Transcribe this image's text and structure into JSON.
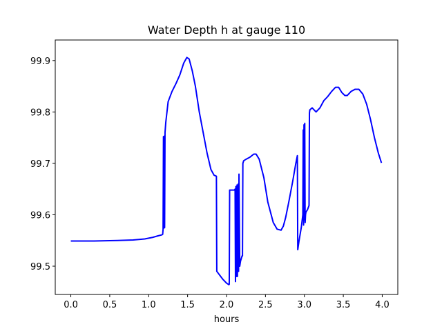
{
  "chart_data": {
    "type": "line",
    "title": "Water Depth h at gauge 110",
    "xlabel": "hours",
    "ylabel": "",
    "xlim": [
      -0.2,
      4.2
    ],
    "ylim": [
      99.445,
      99.94
    ],
    "xticks": [
      0.0,
      0.5,
      1.0,
      1.5,
      2.0,
      2.5,
      3.0,
      3.5,
      4.0
    ],
    "xtick_labels": [
      "0.0",
      "0.5",
      "1.0",
      "1.5",
      "2.0",
      "2.5",
      "3.0",
      "3.5",
      "4.0"
    ],
    "yticks": [
      99.5,
      99.6,
      99.7,
      99.8,
      99.9
    ],
    "ytick_labels": [
      "99.5",
      "99.6",
      "99.7",
      "99.8",
      "99.9"
    ],
    "grid": false,
    "line_color": "#0000ff",
    "series": [
      {
        "x": [
          0.0,
          0.3,
          0.6,
          0.8,
          0.95,
          1.05,
          1.12,
          1.17,
          1.18,
          1.185,
          1.19,
          1.195,
          1.2,
          1.205,
          1.21,
          1.22,
          1.25,
          1.3,
          1.35,
          1.4,
          1.45,
          1.49,
          1.52,
          1.56,
          1.6,
          1.65,
          1.7,
          1.75,
          1.8,
          1.84,
          1.87,
          1.875,
          1.9,
          1.95,
          2.0,
          2.03,
          2.035,
          2.04,
          2.08,
          2.1,
          2.11,
          2.115,
          2.12,
          2.13,
          2.135,
          2.14,
          2.15,
          2.155,
          2.16,
          2.17,
          2.175,
          2.18,
          2.2,
          2.205,
          2.21,
          2.22,
          2.25,
          2.3,
          2.35,
          2.38,
          2.42,
          2.48,
          2.53,
          2.6,
          2.65,
          2.7,
          2.73,
          2.76,
          2.8,
          2.85,
          2.89,
          2.91,
          2.915,
          2.93,
          2.96,
          2.98,
          2.985,
          2.99,
          2.995,
          3.0,
          3.005,
          3.01,
          3.015,
          3.02,
          3.04,
          3.06,
          3.065,
          3.07,
          3.1,
          3.15,
          3.2,
          3.25,
          3.3,
          3.35,
          3.4,
          3.44,
          3.48,
          3.52,
          3.55,
          3.6,
          3.65,
          3.7,
          3.75,
          3.8,
          3.85,
          3.9,
          3.95,
          3.99
        ],
        "y": [
          99.549,
          99.549,
          99.55,
          99.551,
          99.553,
          99.556,
          99.559,
          99.561,
          99.562,
          99.572,
          99.752,
          99.574,
          99.753,
          99.575,
          99.76,
          99.78,
          99.82,
          99.84,
          99.855,
          99.872,
          99.895,
          99.906,
          99.903,
          99.88,
          99.85,
          99.8,
          99.76,
          99.72,
          99.688,
          99.677,
          99.675,
          99.49,
          99.485,
          99.475,
          99.467,
          99.464,
          99.465,
          99.648,
          99.648,
          99.648,
          99.65,
          99.47,
          99.655,
          99.48,
          99.658,
          99.48,
          99.66,
          99.49,
          99.679,
          99.5,
          99.505,
          99.51,
          99.52,
          99.52,
          99.7,
          99.705,
          99.708,
          99.712,
          99.718,
          99.718,
          99.708,
          99.672,
          99.625,
          99.585,
          99.572,
          99.57,
          99.578,
          99.595,
          99.625,
          99.665,
          99.7,
          99.715,
          99.532,
          99.548,
          99.575,
          99.6,
          99.765,
          99.58,
          99.775,
          99.59,
          99.778,
          99.585,
          99.6,
          99.605,
          99.61,
          99.618,
          99.798,
          99.804,
          99.808,
          99.8,
          99.808,
          99.822,
          99.83,
          99.84,
          99.848,
          99.848,
          99.838,
          99.832,
          99.832,
          99.84,
          99.844,
          99.844,
          99.835,
          99.815,
          99.785,
          99.75,
          99.72,
          99.701
        ]
      }
    ]
  }
}
